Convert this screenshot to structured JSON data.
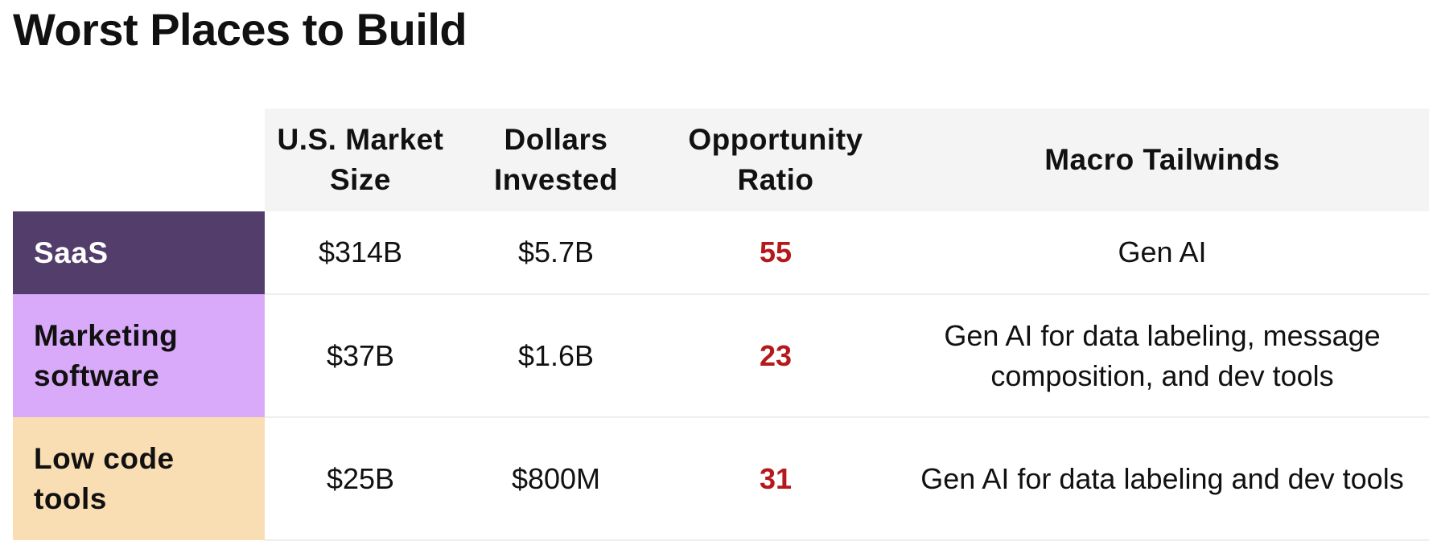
{
  "header": {
    "title": "Worst Places to Build"
  },
  "table": {
    "columns": [
      "U.S. Market Size",
      "Dollars Invested",
      "Opportunity Ratio",
      "Macro Tailwinds"
    ],
    "rows": [
      {
        "label": "SaaS",
        "cells": [
          "$314B",
          "$5.7B",
          "55",
          "Gen AI"
        ]
      },
      {
        "label": "Marketing software",
        "cells": [
          "$37B",
          "$1.6B",
          "23",
          "Gen AI for data labeling, message composition, and dev tools"
        ]
      },
      {
        "label": "Low code tools",
        "cells": [
          "$25B",
          "$800M",
          "31",
          "Gen AI for data labeling and dev tools"
        ]
      }
    ]
  }
}
